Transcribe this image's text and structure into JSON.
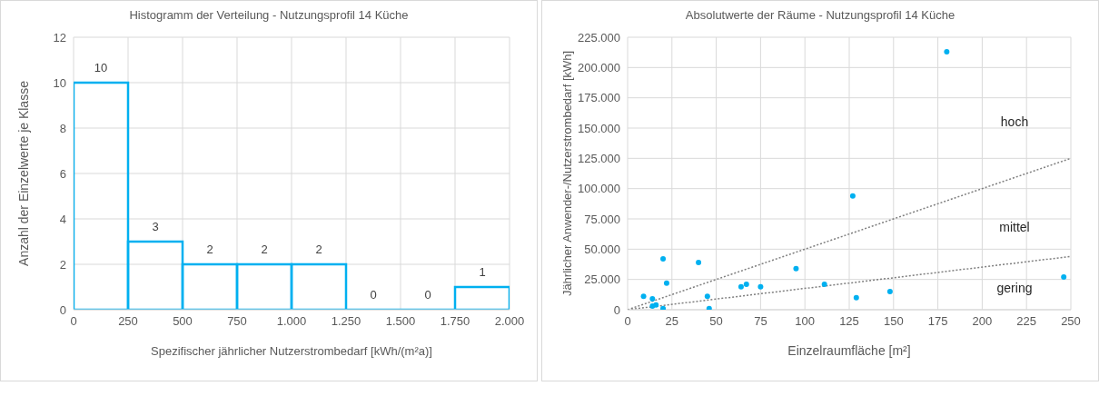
{
  "chart_data": [
    {
      "type": "histogram",
      "title": "Histogramm der Verteilung - Nutzungsprofil 14 Küche",
      "xlabel": "Spezifischer jährlicher Nutzerstrombedarf [kWh/(m²a)]",
      "ylabel": "Anzahl der Einzelwerte je Klasse",
      "bins": [
        0,
        250,
        500,
        750,
        1000,
        1250,
        1500,
        1750,
        2000
      ],
      "values": [
        10,
        3,
        2,
        2,
        2,
        0,
        0,
        1
      ],
      "color": "#00b0f0",
      "data_labels": true,
      "xlim": [
        0,
        2000
      ],
      "xticks": [
        0,
        250,
        500,
        750,
        {
          "value": 1000,
          "label": "1.000"
        },
        {
          "value": 1250,
          "label": "1.250"
        },
        {
          "value": 1500,
          "label": "1.500"
        },
        {
          "value": 1750,
          "label": "1.750"
        },
        {
          "value": 2000,
          "label": "2.000"
        }
      ],
      "ylim": [
        0,
        12
      ],
      "yticks": [
        0,
        2,
        4,
        6,
        8,
        10,
        12
      ],
      "grid": true
    },
    {
      "type": "scatter",
      "title": "Absolutwerte der Räume - Nutzungsprofil 14 Küche",
      "xlabel": "Einzelraumfläche [m²]",
      "ylabel": "Jährlicher Anwender-/Nutzerstrombedarf [kWh]",
      "series": [
        {
          "type": "scatter",
          "marker": "circle",
          "color": "#00b0f0",
          "x": [
            180,
            127,
            20,
            40,
            95,
            22,
            64,
            67,
            75,
            111,
            246,
            148,
            129,
            9,
            45,
            14,
            14,
            16,
            20,
            46
          ],
          "values": [
            213000,
            94000,
            42000,
            39000,
            34000,
            22000,
            19000,
            21000,
            19000,
            21000,
            27000,
            15000,
            10000,
            11000,
            11000,
            9000,
            3000,
            4000,
            1000,
            1000
          ]
        },
        {
          "type": "line",
          "color": "#7f7f7f",
          "line_style": "dotted",
          "x": [
            0,
            250
          ],
          "values": [
            0,
            125000
          ]
        },
        {
          "type": "line",
          "color": "#7f7f7f",
          "line_style": "dotted",
          "x": [
            0,
            250
          ],
          "values": [
            0,
            44000
          ]
        }
      ],
      "annotations": [
        "hoch",
        "mittel",
        "gering"
      ],
      "xlim": [
        0,
        250
      ],
      "xticks": [
        0,
        25,
        50,
        75,
        100,
        125,
        150,
        175,
        200,
        225,
        250
      ],
      "ylim": [
        0,
        225000
      ],
      "yticks": [
        0,
        {
          "value": 25000,
          "label": "25.000"
        },
        {
          "value": 50000,
          "label": "50.000"
        },
        {
          "value": 75000,
          "label": "75.000"
        },
        {
          "value": 100000,
          "label": "100.000"
        },
        {
          "value": 125000,
          "label": "125.000"
        },
        {
          "value": 150000,
          "label": "150.000"
        },
        {
          "value": 175000,
          "label": "175.000"
        },
        {
          "value": 200000,
          "label": "200.000"
        },
        {
          "value": 225000,
          "label": "225.000"
        }
      ],
      "grid": true
    }
  ]
}
